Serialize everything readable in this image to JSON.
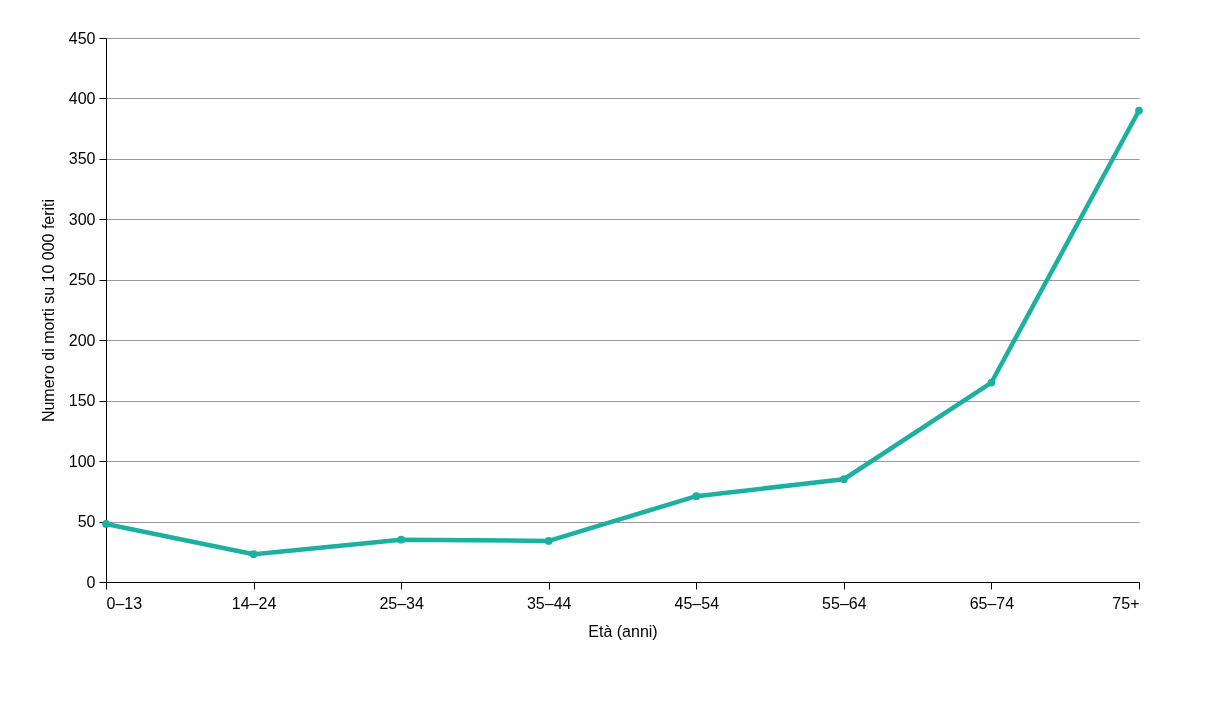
{
  "chart_data": {
    "type": "line",
    "xlabel": "Età (anni)",
    "ylabel": "Numero di morti su 10 000 feriti",
    "categories": [
      "0–13",
      "14–24",
      "25–34",
      "35–44",
      "45–54",
      "55–64",
      "65–74",
      "75+"
    ],
    "series": [
      {
        "color": "#1bb0a0",
        "values": [
          48,
          23,
          35,
          34,
          71,
          85,
          165,
          390
        ]
      }
    ],
    "ylim": [
      0,
      450
    ],
    "yticks": [
      0,
      50,
      100,
      150,
      200,
      250,
      300,
      350,
      400,
      450
    ],
    "grid": "y",
    "marker": "circle",
    "line_style": "solid"
  }
}
